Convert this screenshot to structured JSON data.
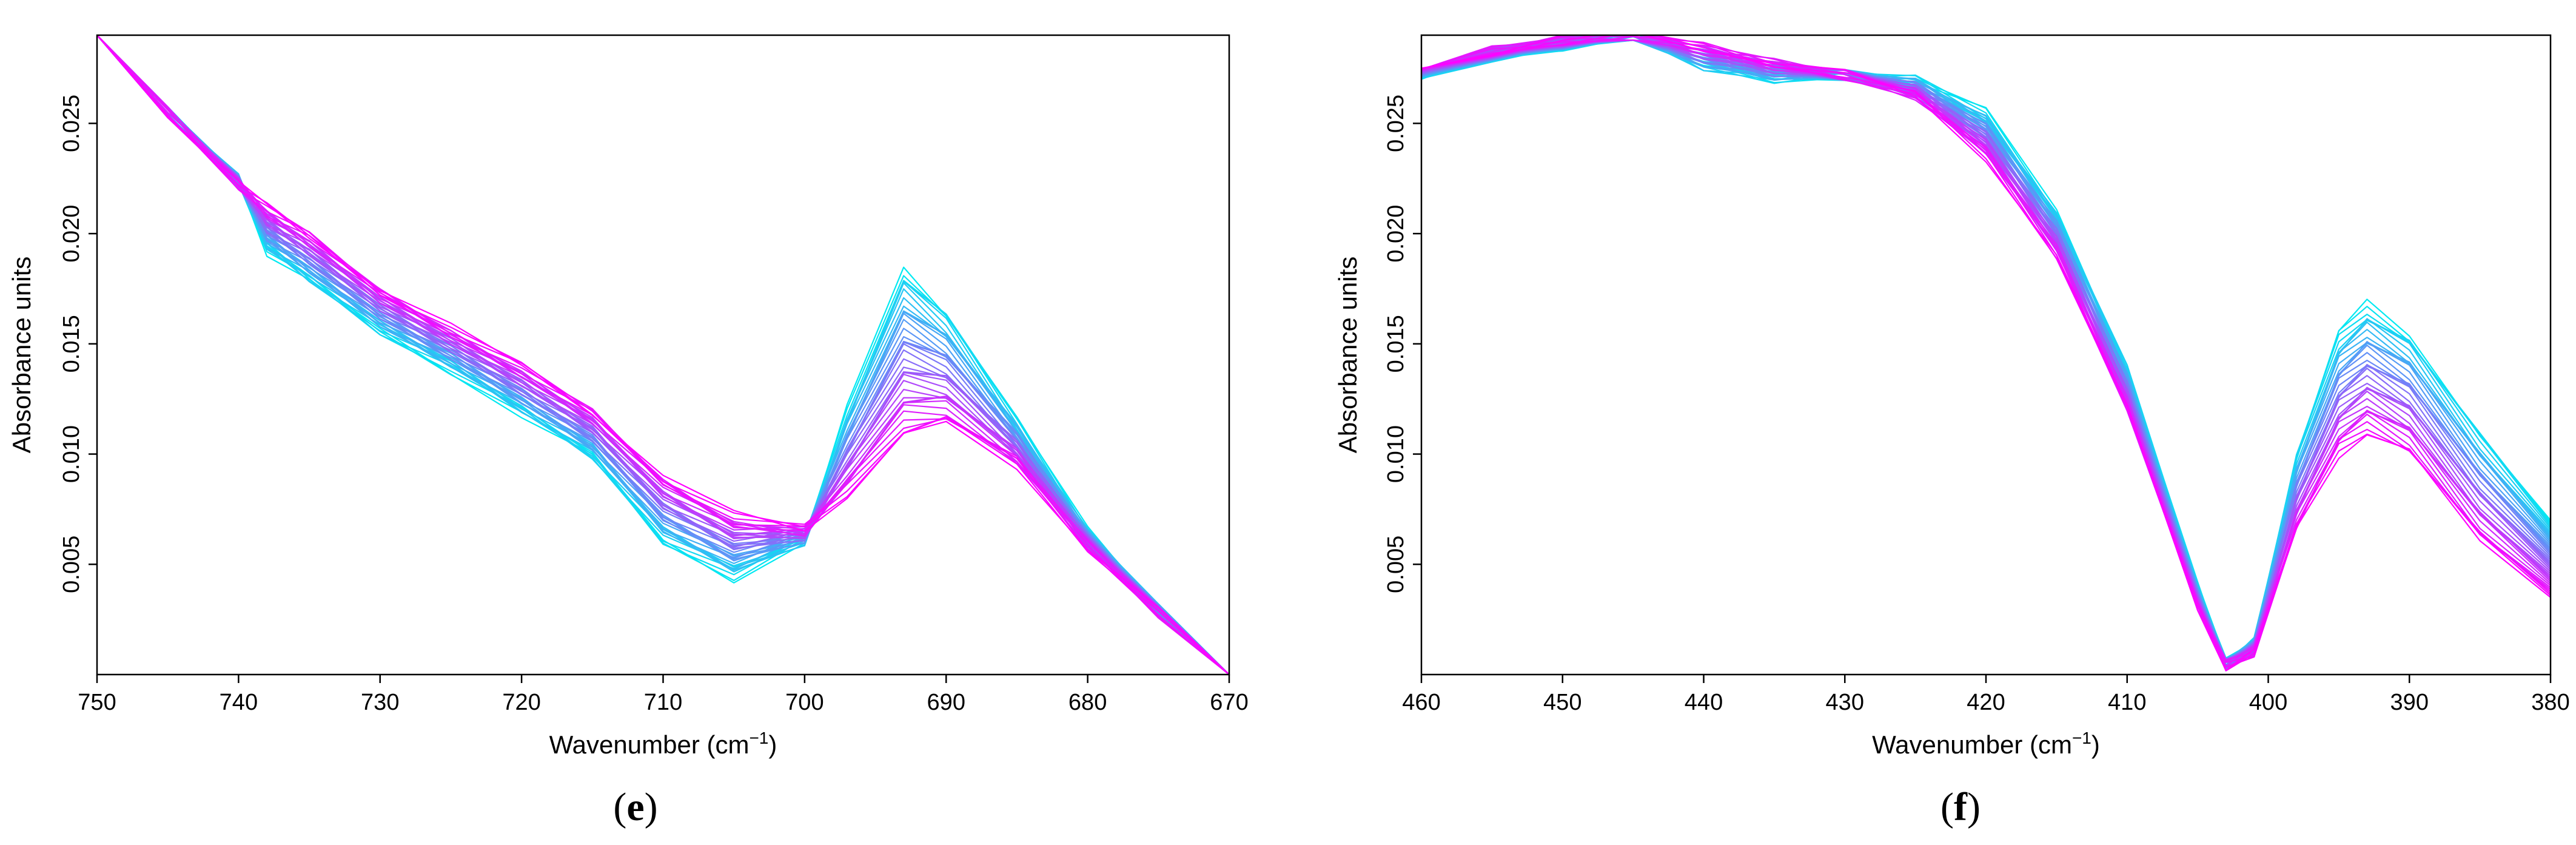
{
  "palette": {
    "start": "#00eaf2",
    "end": "#ff00ff",
    "frame": "#000000"
  },
  "chart_data": [
    {
      "type": "line",
      "panel_label_open": "(",
      "panel_label": "e",
      "panel_label_close": ")",
      "xlabel_main": "Wavenumber (cm",
      "xlabel_sup": "−1",
      "xlabel_end": ")",
      "ylabel": "Absorbance units",
      "xlim": [
        750,
        670
      ],
      "ylim": [
        0.0,
        0.029
      ],
      "x_ticks": [
        "750",
        "740",
        "730",
        "720",
        "710",
        "700",
        "690",
        "680",
        "670"
      ],
      "y_ticks": [
        "0.005",
        "0.010",
        "0.015",
        "0.020",
        "0.025"
      ],
      "series_count": 40,
      "series_first": {
        "x": [
          750,
          745,
          740,
          738,
          735,
          730,
          725,
          720,
          715,
          710,
          705,
          700,
          697,
          693,
          690,
          685,
          680,
          675,
          670
        ],
        "y": [
          0.029,
          0.0255,
          0.0225,
          0.0192,
          0.0178,
          0.0155,
          0.0138,
          0.0118,
          0.0098,
          0.006,
          0.0044,
          0.006,
          0.012,
          0.0185,
          0.0165,
          0.0115,
          0.0065,
          0.003,
          0.0
        ]
      },
      "series_last": {
        "x": [
          750,
          745,
          740,
          738,
          735,
          730,
          725,
          720,
          715,
          710,
          705,
          700,
          697,
          693,
          690,
          685,
          680,
          675,
          670
        ],
        "y": [
          0.029,
          0.0255,
          0.0222,
          0.0212,
          0.02,
          0.0175,
          0.0157,
          0.014,
          0.012,
          0.009,
          0.0072,
          0.0066,
          0.0082,
          0.0108,
          0.0113,
          0.0095,
          0.0058,
          0.0028,
          0.0
        ]
      }
    },
    {
      "type": "line",
      "panel_label_open": "(",
      "panel_label": "f",
      "panel_label_close": ")",
      "xlabel_main": "Wavenumber (cm",
      "xlabel_sup": "−1",
      "xlabel_end": ")",
      "ylabel": "Absorbance units",
      "xlim": [
        460,
        380
      ],
      "ylim": [
        0.0,
        0.029
      ],
      "x_ticks": [
        "460",
        "450",
        "440",
        "430",
        "420",
        "410",
        "400",
        "390",
        "380"
      ],
      "y_ticks": [
        "0.005",
        "0.010",
        "0.015",
        "0.020",
        "0.025"
      ],
      "series_count": 40,
      "series_first": {
        "x": [
          460,
          455,
          450,
          445,
          440,
          435,
          430,
          425,
          420,
          415,
          410,
          405,
          403,
          401,
          398,
          395,
          393,
          390,
          385,
          380
        ],
        "y": [
          0.027,
          0.028,
          0.0285,
          0.029,
          0.0275,
          0.027,
          0.0272,
          0.027,
          0.0255,
          0.021,
          0.014,
          0.004,
          0.0005,
          0.0015,
          0.01,
          0.0155,
          0.0168,
          0.0155,
          0.011,
          0.007
        ]
      },
      "series_last": {
        "x": [
          460,
          455,
          450,
          445,
          440,
          435,
          430,
          425,
          420,
          415,
          410,
          405,
          403,
          401,
          398,
          395,
          393,
          390,
          385,
          380
        ],
        "y": [
          0.0275,
          0.0283,
          0.0288,
          0.029,
          0.0285,
          0.0278,
          0.0272,
          0.0262,
          0.0235,
          0.019,
          0.012,
          0.003,
          0.0004,
          0.001,
          0.0065,
          0.01,
          0.011,
          0.01,
          0.006,
          0.0035
        ]
      }
    }
  ]
}
